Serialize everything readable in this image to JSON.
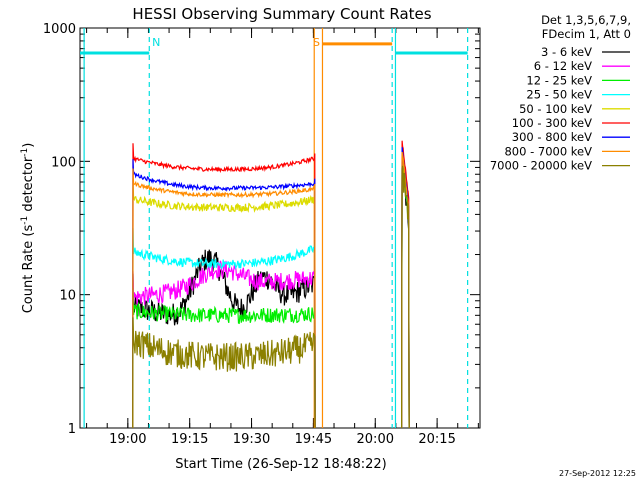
{
  "chart_data": {
    "type": "line",
    "title": "HESSI Observing Summary Count Rates",
    "xlabel": "Start Time (26-Sep-12 18:48:22)",
    "ylabel_main": "Count Rate (s",
    "ylabel_sup1": "-1",
    "ylabel_mid": " detector",
    "ylabel_sup2": "-1",
    "ylabel_end": ")",
    "x_unit": "minutes after 18:48:22",
    "xlim": [
      0,
      97
    ],
    "ylim": [
      1,
      1000
    ],
    "yscale": "log",
    "x_ticks": [
      {
        "label": "19:00",
        "value": 11.6
      },
      {
        "label": "19:15",
        "value": 26.6
      },
      {
        "label": "19:30",
        "value": 41.6
      },
      {
        "label": "19:45",
        "value": 56.6
      },
      {
        "label": "20:00",
        "value": 71.6
      },
      {
        "label": "20:15",
        "value": 86.6
      }
    ],
    "y_ticks": [
      {
        "label": "1",
        "value": 1
      },
      {
        "label": "10",
        "value": 10
      },
      {
        "label": "100",
        "value": 100
      },
      {
        "label": "1000",
        "value": 1000
      }
    ],
    "legend_header": [
      "Det 1,3,5,6,7,9,",
      "FDecim 1, Att 0"
    ],
    "legend_position": "right",
    "footer_date": "27-Sep-2012 12:25",
    "annotations": [
      {
        "text": "N",
        "x": 17.5,
        "color": "#00e0e0"
      },
      {
        "text": "S",
        "x": 56.5,
        "color": "#ff8c00"
      }
    ],
    "night_segments": [
      [
        0,
        16.8
      ],
      [
        76.5,
        94
      ]
    ],
    "night_level": 650,
    "saa_segment": [
      58.8,
      75.7
    ],
    "saa_level": 760,
    "vlines": [
      {
        "x": 1.0,
        "color": "#00e0e0",
        "dashed": false
      },
      {
        "x": 16.8,
        "color": "#00e0e0",
        "dashed": true
      },
      {
        "x": 56.8,
        "color": "#ff8c00",
        "dashed": false
      },
      {
        "x": 58.8,
        "color": "#ff8c00",
        "dashed": false
      },
      {
        "x": 75.7,
        "color": "#00e0e0",
        "dashed": true
      },
      {
        "x": 76.5,
        "color": "#00e0e0",
        "dashed": false
      },
      {
        "x": 94.0,
        "color": "#00e0e0",
        "dashed": true
      }
    ],
    "data_window": [
      12.8,
      57.0
    ],
    "data_window2": [
      78.0,
      79.8
    ],
    "series": [
      {
        "name": "3 - 6 keV",
        "color": "#000000",
        "shape": "peak",
        "start": 8,
        "peak": 22,
        "end": 12,
        "noise": 0.18,
        "rise": 0.8,
        "tail": 1.1,
        "post": 100
      },
      {
        "name": "6 - 12 keV",
        "color": "#ff00ff",
        "shape": "bump",
        "start": 10,
        "peak": 18,
        "end": 14,
        "noise": 0.14,
        "rise": 0.5,
        "tail": 1.0,
        "post": 110
      },
      {
        "name": "12 - 25 keV",
        "color": "#00ee00",
        "shape": "flat",
        "start": 7.5,
        "peak": 7,
        "end": 7.2,
        "noise": 0.12,
        "rise": 0.5,
        "tail": 0.8,
        "post": 105
      },
      {
        "name": "25 - 50 keV",
        "color": "#00ffff",
        "shape": "flat",
        "start": 21,
        "peak": 17,
        "end": 22,
        "noise": 0.07,
        "rise": 0.5,
        "tail": 0.8,
        "post": 110
      },
      {
        "name": "50 - 100 keV",
        "color": "#dcdc00",
        "shape": "flat",
        "start": 52,
        "peak": 45,
        "end": 52,
        "noise": 0.06,
        "rise": 0.4,
        "tail": 0.8,
        "post": 115
      },
      {
        "name": "100 - 300 keV",
        "color": "#ff0000",
        "shape": "flat",
        "start": 105,
        "peak": 87,
        "end": 105,
        "noise": 0.03,
        "rise": 0.3,
        "tail": 0.7,
        "post": 145
      },
      {
        "name": "300 - 800 keV",
        "color": "#0000ff",
        "shape": "flat",
        "start": 80,
        "peak": 63,
        "end": 68,
        "noise": 0.03,
        "rise": 0.3,
        "tail": 0.7,
        "post": 125
      },
      {
        "name": "800 - 7000 keV",
        "color": "#ff8c00",
        "shape": "flat",
        "start": 68,
        "peak": 56,
        "end": 62,
        "noise": 0.03,
        "rise": 0.3,
        "tail": 0.7,
        "post": 120
      },
      {
        "name": "7000 - 20000 keV",
        "color": "#8b8000",
        "shape": "flat",
        "start": 4.5,
        "peak": 3.4,
        "end": 4.2,
        "noise": 0.22,
        "rise": 0.5,
        "tail": 1.0,
        "post": 95
      }
    ]
  }
}
